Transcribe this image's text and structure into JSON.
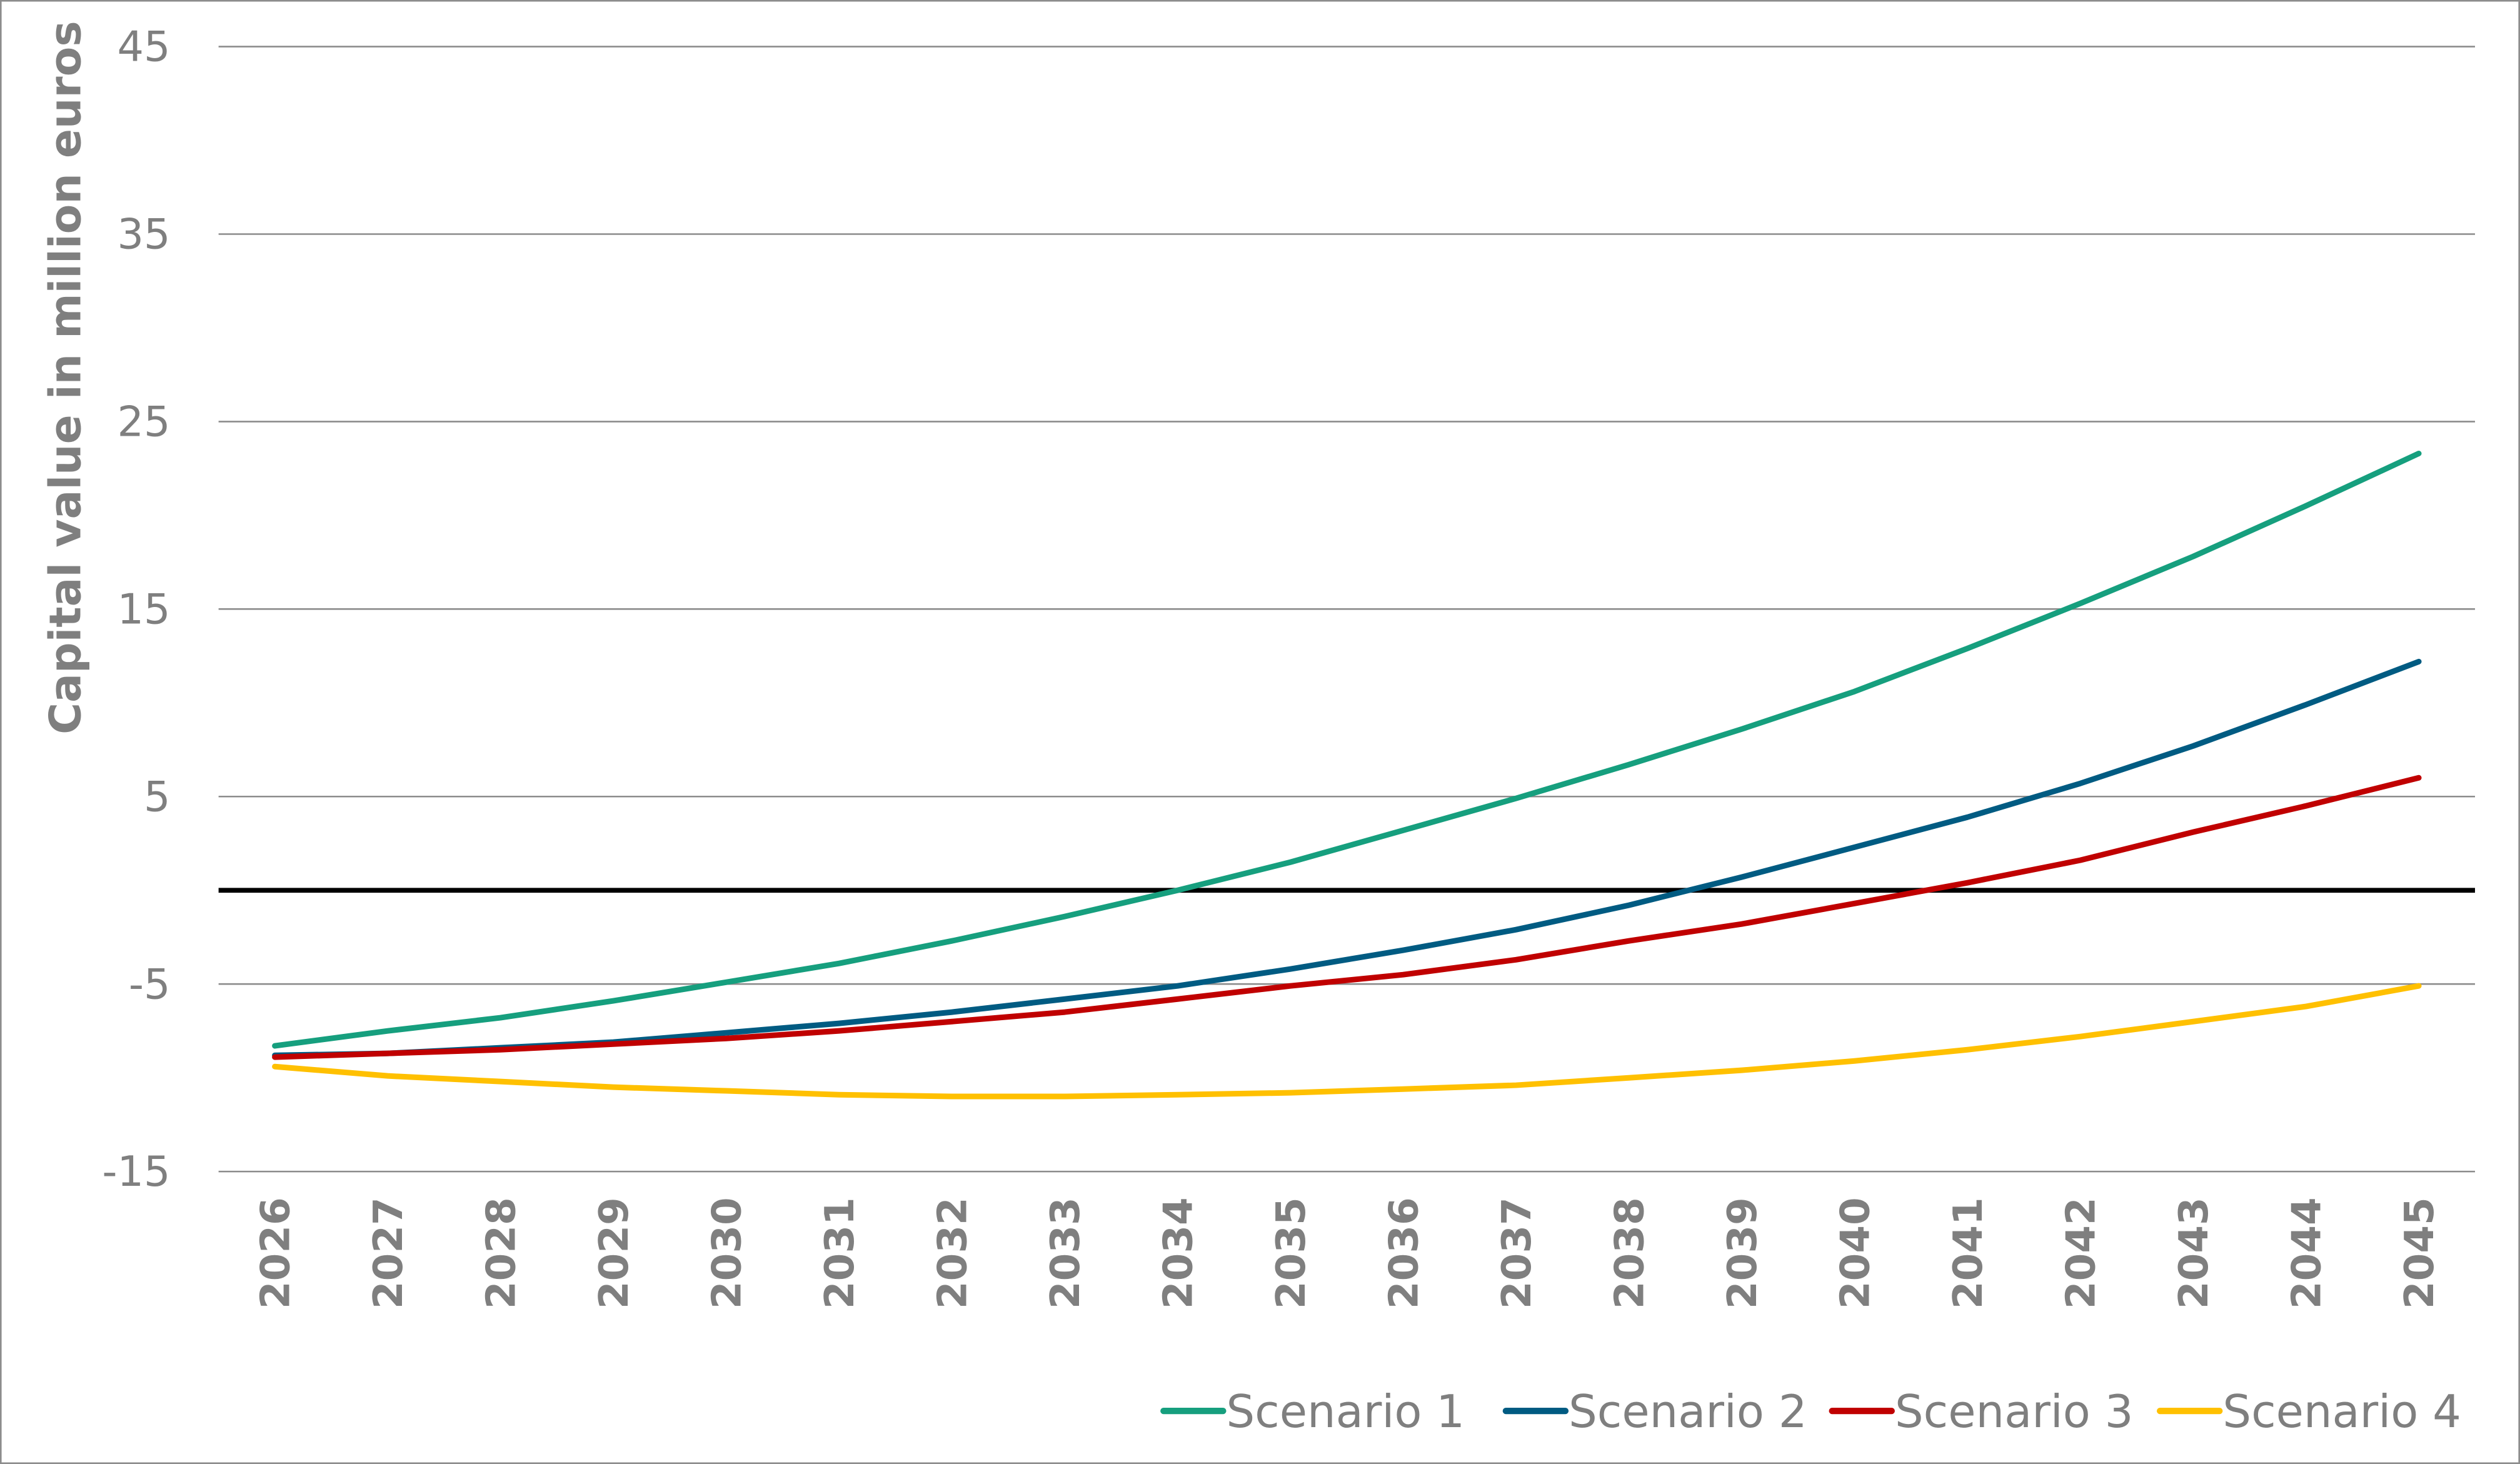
{
  "chart_data": {
    "type": "line",
    "title": "",
    "xlabel": "",
    "ylabel": "Capital value in million euros",
    "ylim": [
      -15,
      45
    ],
    "yticks": [
      45,
      35,
      25,
      15,
      5,
      -5,
      -15
    ],
    "grid": true,
    "zero_line": true,
    "legend_position": "bottom-right",
    "x": [
      "2026",
      "2027",
      "2028",
      "2029",
      "2030",
      "2031",
      "2032",
      "2033",
      "2034",
      "2035",
      "2036",
      "2037",
      "2038",
      "2039",
      "2040",
      "2041",
      "2042",
      "2043",
      "2044",
      "2045"
    ],
    "series": [
      {
        "name": "Scenario 1",
        "color": "#169f7e",
        "values": [
          -8.3,
          -7.5,
          -6.8,
          -5.9,
          -4.9,
          -3.9,
          -2.7,
          -1.4,
          0.0,
          1.5,
          3.2,
          4.9,
          6.7,
          8.6,
          10.6,
          12.9,
          15.3,
          17.8,
          20.5,
          23.3
        ]
      },
      {
        "name": "Scenario 2",
        "color": "#005b82",
        "values": [
          -8.8,
          -8.7,
          -8.4,
          -8.1,
          -7.6,
          -7.1,
          -6.5,
          -5.8,
          -5.1,
          -4.2,
          -3.2,
          -2.1,
          -0.8,
          0.7,
          2.3,
          3.9,
          5.7,
          7.7,
          9.9,
          12.2
        ]
      },
      {
        "name": "Scenario 3",
        "color": "#c00000",
        "values": [
          -8.9,
          -8.7,
          -8.5,
          -8.2,
          -7.9,
          -7.5,
          -7.0,
          -6.5,
          -5.8,
          -5.1,
          -4.5,
          -3.7,
          -2.7,
          -1.8,
          -0.7,
          0.4,
          1.6,
          3.1,
          4.5,
          6.0
        ]
      },
      {
        "name": "Scenario 4",
        "color": "#ffc000",
        "values": [
          -9.4,
          -9.9,
          -10.2,
          -10.5,
          -10.7,
          -10.9,
          -11.0,
          -11.0,
          -10.9,
          -10.8,
          -10.6,
          -10.4,
          -10.0,
          -9.6,
          -9.1,
          -8.5,
          -7.8,
          -7.0,
          -6.2,
          -5.1
        ]
      }
    ]
  }
}
